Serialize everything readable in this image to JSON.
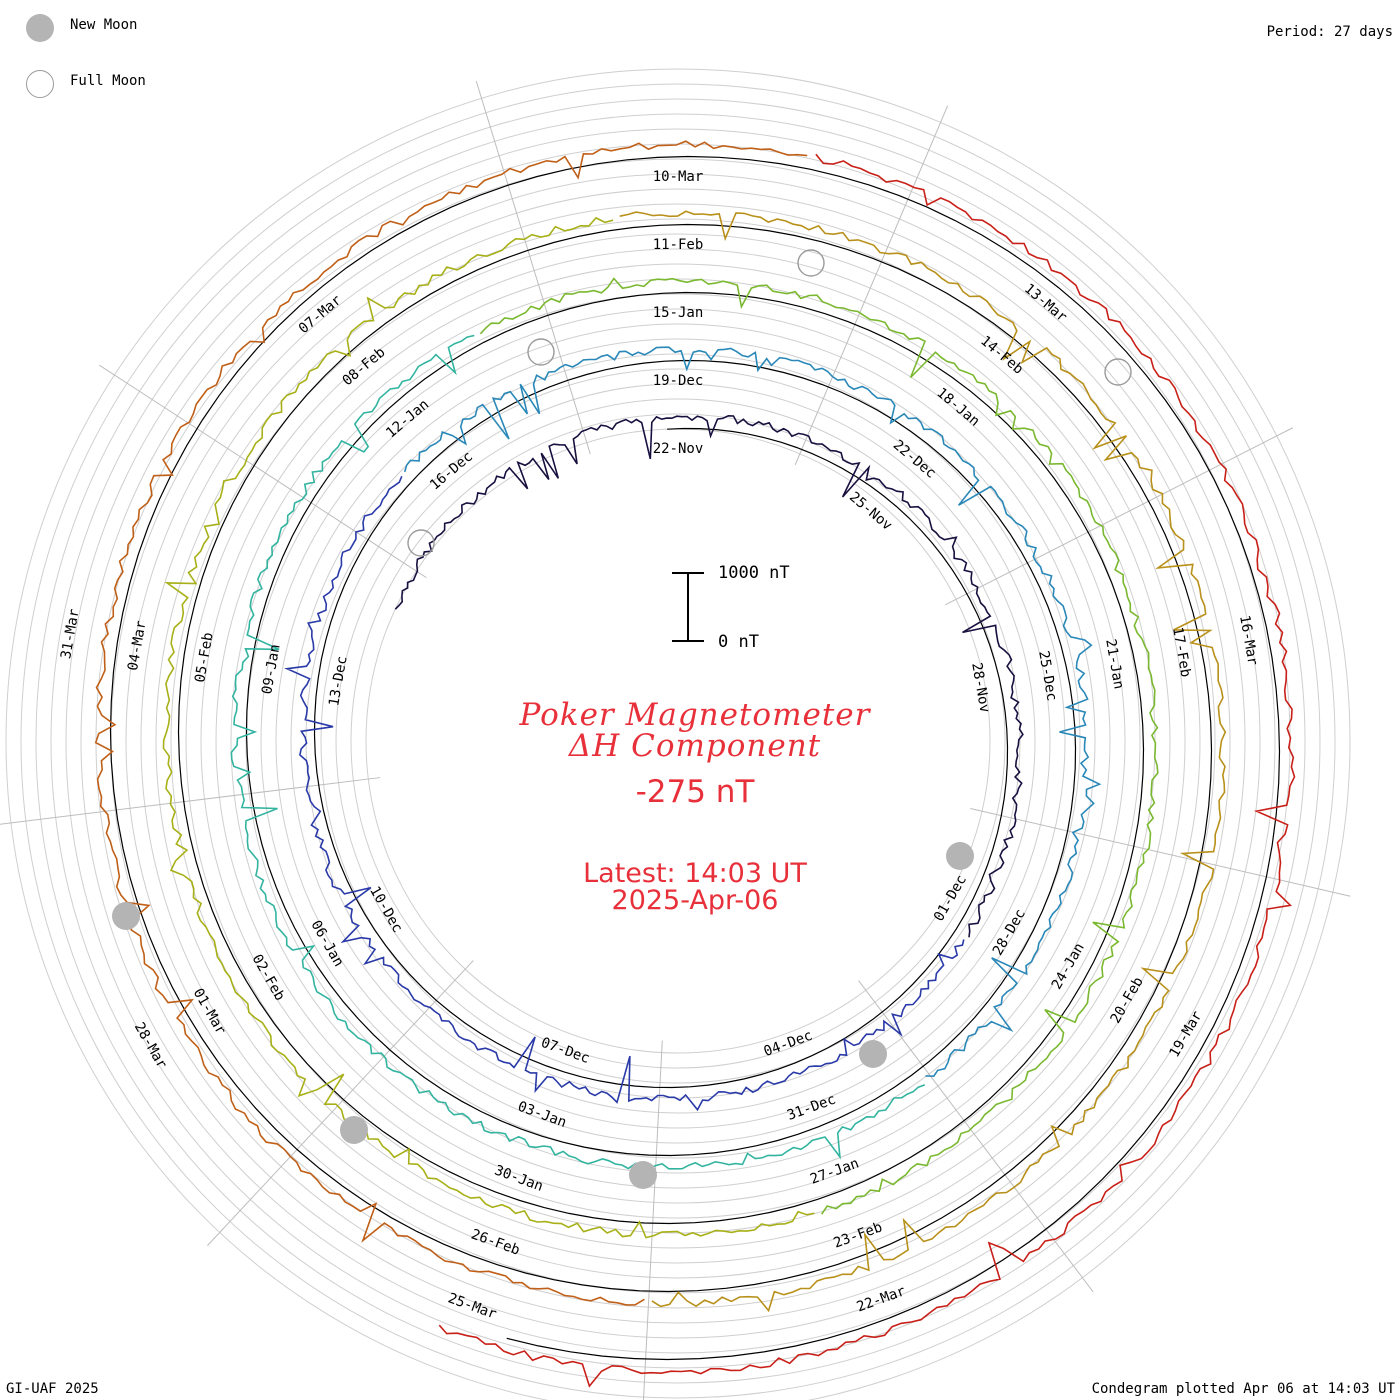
{
  "header": {
    "period_label": "Period: 27 days"
  },
  "footer": {
    "credit": "GI-UAF 2025",
    "plotted": "Condegram plotted Apr 06 at 14:03 UT"
  },
  "legend": {
    "new_moon": "New Moon",
    "full_moon": "Full Moon",
    "new_moon_color": "#b4b4b4",
    "full_moon_color": "#9a9a9a"
  },
  "center": {
    "title_line1": "Poker Magnetometer",
    "title_line2": "ΔH Component",
    "current_value": "-275 nT",
    "latest_line1": "Latest: 14:03 UT",
    "latest_line2": "2025-Apr-06",
    "text_color": "#e8303a"
  },
  "scale": {
    "top_label": "1000 nT",
    "bottom_label": "0 nT"
  },
  "chart_data": {
    "type": "line",
    "title": "Poker Magnetometer ΔH Component",
    "period_days": 27,
    "units": "nT",
    "latest_value": -275,
    "latest_time": "2025-Apr-06 14:03 UT",
    "grid": true,
    "rotations": [
      {
        "labels": [
          "22-Nov",
          "25-Nov",
          "28-Nov",
          "01-Dec",
          "04-Dec",
          "07-Dec",
          "10-Dec",
          "13-Dec",
          "16-Dec"
        ],
        "color": "#1a1040"
      },
      {
        "labels": [
          "19-Dec",
          "22-Dec",
          "25-Dec",
          "28-Dec",
          "31-Dec",
          "03-Jan",
          "06-Jan",
          "09-Jan",
          "12-Jan"
        ],
        "color": "#2a3aa8"
      },
      {
        "labels": [
          "15-Jan",
          "18-Jan",
          "21-Jan",
          "24-Jan",
          "27-Jan",
          "30-Jan",
          "02-Feb",
          "05-Feb",
          "08-Feb"
        ],
        "color": "#2a88b8"
      },
      {
        "labels": [
          "11-Feb",
          "14-Feb",
          "17-Feb",
          "20-Feb",
          "23-Feb",
          "26-Feb",
          "01-Mar",
          "04-Mar",
          "07-Mar"
        ],
        "color": "#7ab830"
      },
      {
        "labels": [
          "10-Mar",
          "13-Mar",
          "16-Mar",
          "19-Mar",
          "22-Mar",
          "25-Mar",
          "28-Mar",
          "31-Mar"
        ],
        "color": "#b8901a"
      }
    ],
    "series_colors": [
      "#1a1040",
      "#2a3aa8",
      "#2a88b8",
      "#32b4a0",
      "#7ab830",
      "#a8b018",
      "#b8901a",
      "#c06018",
      "#c82018"
    ]
  }
}
